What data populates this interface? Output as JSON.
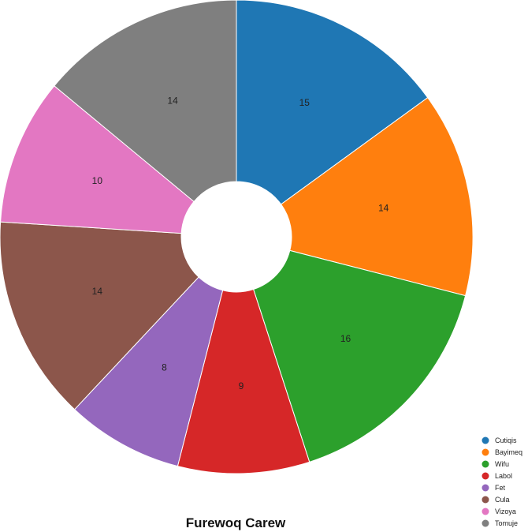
{
  "chart_data": {
    "type": "pie",
    "title": "Furewoq Carew",
    "donut": true,
    "legend_position": "bottom-right",
    "categories": [
      "Cutiqis",
      "Bayimeq",
      "Wifu",
      "Labol",
      "Fet",
      "Cula",
      "Vizoya",
      "Tomuje"
    ],
    "values": [
      15,
      14,
      16,
      9,
      8,
      14,
      10,
      14
    ],
    "colors": [
      "#1f77b4",
      "#ff7f0e",
      "#2ca02c",
      "#d62728",
      "#9467bd",
      "#8c564b",
      "#e377c2",
      "#7f7f7f"
    ]
  }
}
